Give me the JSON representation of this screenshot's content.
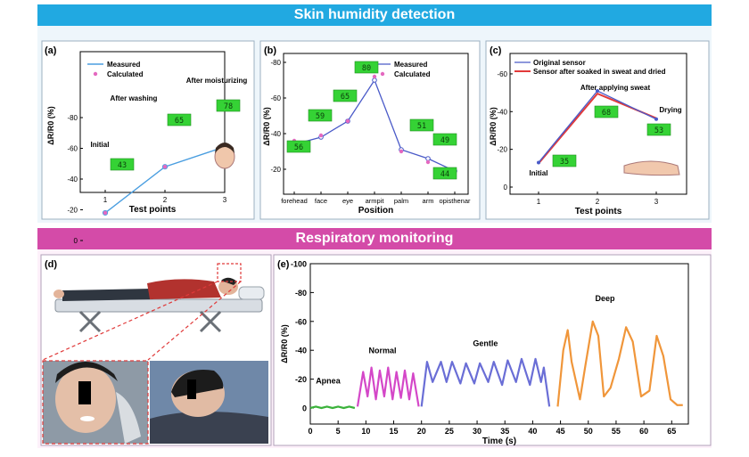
{
  "sections": {
    "top_title": "Skin humidity detection",
    "bottom_title": "Respiratory monitoring"
  },
  "panels": {
    "a": "(a)",
    "b": "(b)",
    "c": "(c)",
    "d": "(d)",
    "e": "(e)"
  },
  "colors": {
    "top_band": "#21a9e1",
    "bottom_band": "#d44ba8",
    "measured": "#4a9ee0",
    "calculated": "#e468c0",
    "lcd": "#35d235",
    "original_sensor": "#4a5ac8",
    "soaked_sensor": "#e23a3a",
    "apnea": "#3bb23b",
    "normal": "#d447c8",
    "gentle": "#6a6ed6",
    "deep": "#f0963a"
  },
  "chart_data": [
    {
      "id": "a",
      "type": "line",
      "xlabel": "Test points",
      "ylabel": "ΔR/R0 (%)",
      "x": [
        1,
        2,
        3
      ],
      "xticks": [
        "1",
        "2",
        "3"
      ],
      "yticks": [
        "-80",
        "-60",
        "-40",
        "-20",
        "0"
      ],
      "ylim": [
        0,
        -80
      ],
      "series": [
        {
          "name": "Measured",
          "values": [
            -18,
            -48,
            -61
          ]
        },
        {
          "name": "Calculated",
          "values": [
            -18,
            -48,
            -61
          ]
        }
      ],
      "annotations": [
        "Initial",
        "After washing",
        "After moisturizing"
      ],
      "lcd_readings": [
        "43",
        "65",
        "78"
      ]
    },
    {
      "id": "b",
      "type": "line",
      "xlabel": "Position",
      "ylabel": "ΔR/R0 (%)",
      "categories": [
        "forehead",
        "face",
        "eye",
        "armpit",
        "palm",
        "arm",
        "opisthenar"
      ],
      "yticks": [
        "-80",
        "-60",
        "-40",
        "-20"
      ],
      "ylim": [
        -10,
        -82
      ],
      "series": [
        {
          "name": "Measured",
          "values": [
            -34,
            -38,
            -47,
            -70,
            -31,
            -26,
            -19
          ]
        },
        {
          "name": "Calculated",
          "values": [
            -36,
            -39,
            -47,
            -72,
            -30,
            -24,
            -18
          ]
        }
      ],
      "lcd_readings": [
        "56",
        "59",
        "65",
        "80",
        "51",
        "49",
        "44"
      ]
    },
    {
      "id": "c",
      "type": "line",
      "xlabel": "Test points",
      "ylabel": "ΔR/R0 (%)",
      "x": [
        1,
        2,
        3
      ],
      "xticks": [
        "1",
        "2",
        "3"
      ],
      "yticks": [
        "-60",
        "-40",
        "-20",
        "0"
      ],
      "ylim": [
        0,
        -68
      ],
      "series": [
        {
          "name": "Original sensor",
          "values": [
            -13,
            -51,
            -36
          ]
        },
        {
          "name": "Sensor after soaked in sweat and dried",
          "values": [
            -13,
            -50,
            -37
          ]
        }
      ],
      "annotations": [
        "Initial",
        "After applying sweat",
        "Drying"
      ],
      "lcd_readings": [
        "35",
        "68",
        "53"
      ]
    },
    {
      "id": "e",
      "type": "line",
      "xlabel": "Time (s)",
      "ylabel": "ΔR/R0 (%)",
      "xticks": [
        "0",
        "5",
        "10",
        "15",
        "20",
        "25",
        "30",
        "35",
        "40",
        "45",
        "50",
        "55",
        "60",
        "65"
      ],
      "xlim": [
        0,
        68
      ],
      "yticks": [
        "-100",
        "-80",
        "-60",
        "-40",
        "-20",
        "0"
      ],
      "ylim": [
        0,
        -100
      ],
      "segments": [
        {
          "name": "Apnea",
          "x": [
            0,
            1,
            2,
            3,
            4,
            5,
            6,
            7,
            8
          ],
          "y": [
            0,
            -1,
            0,
            -1,
            0,
            -1,
            0,
            -1,
            0
          ]
        },
        {
          "name": "Normal",
          "x": [
            8.5,
            9.5,
            10.3,
            11,
            11.8,
            12.5,
            13.3,
            14,
            14.8,
            15.5,
            16.3,
            17,
            17.8,
            18.5,
            19.5
          ],
          "y": [
            -1,
            -25,
            -8,
            -28,
            -6,
            -26,
            -8,
            -28,
            -6,
            -25,
            -7,
            -26,
            -6,
            -24,
            -1
          ]
        },
        {
          "name": "Gentle",
          "x": [
            20,
            21,
            22,
            23.5,
            24.5,
            25.5,
            27,
            28,
            29.5,
            30.5,
            32,
            33,
            34.5,
            35.5,
            37,
            38,
            39.5,
            40.5,
            41.5,
            42,
            43
          ],
          "y": [
            -1,
            -32,
            -18,
            -32,
            -18,
            -32,
            -17,
            -31,
            -17,
            -31,
            -18,
            -32,
            -16,
            -33,
            -18,
            -34,
            -16,
            -34,
            -18,
            -28,
            -1
          ]
        },
        {
          "name": "Deep",
          "x": [
            44.5,
            45.5,
            46.3,
            47,
            48.5,
            49.5,
            50.8,
            51.8,
            52.8,
            54,
            55.5,
            56.8,
            58,
            59.5,
            61,
            62.3,
            63.5,
            64.8,
            66,
            67
          ],
          "y": [
            -1,
            -40,
            -54,
            -32,
            -6,
            -30,
            -60,
            -50,
            -8,
            -14,
            -34,
            -56,
            -46,
            -8,
            -12,
            -50,
            -36,
            -6,
            -2,
            -2
          ]
        }
      ]
    }
  ],
  "labels_e": {
    "apnea": "Apnea",
    "normal": "Normal",
    "gentle": "Gentle",
    "deep": "Deep"
  }
}
